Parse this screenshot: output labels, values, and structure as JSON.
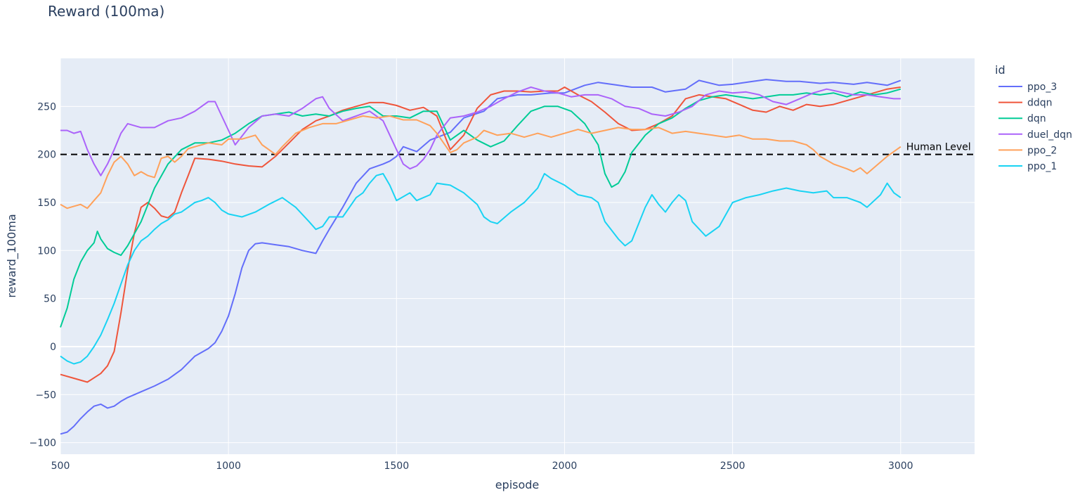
{
  "chart_data": {
    "type": "line",
    "title": "Reward (100ma)",
    "xlabel": "episode",
    "ylabel": "reward_100ma",
    "xlim": [
      500,
      3220
    ],
    "ylim": [
      -112,
      300
    ],
    "x_ticks": [
      500,
      1000,
      1500,
      2000,
      2500,
      3000
    ],
    "y_ticks": [
      -100,
      -50,
      0,
      50,
      100,
      150,
      200,
      250
    ],
    "grid": true,
    "legend": {
      "title": "id",
      "placement": "right"
    },
    "reference_line": {
      "y": 200,
      "label": "Human Level",
      "style": "dashed"
    },
    "series": [
      {
        "name": "ppo_3",
        "color": "#636efa",
        "x": [
          500,
          520,
          540,
          560,
          580,
          600,
          620,
          640,
          660,
          680,
          700,
          740,
          780,
          820,
          860,
          900,
          940,
          960,
          980,
          1000,
          1020,
          1040,
          1060,
          1080,
          1100,
          1140,
          1180,
          1220,
          1260,
          1280,
          1300,
          1340,
          1380,
          1420,
          1460,
          1480,
          1500,
          1520,
          1560,
          1600,
          1660,
          1700,
          1760,
          1800,
          1860,
          1900,
          1960,
          2000,
          2060,
          2100,
          2160,
          2200,
          2260,
          2300,
          2360,
          2400,
          2460,
          2500,
          2560,
          2600,
          2660,
          2700,
          2760,
          2800,
          2860,
          2900,
          2960,
          3000
        ],
        "values": [
          -91,
          -89,
          -83,
          -75,
          -68,
          -62,
          -60,
          -64,
          -62,
          -57,
          -53,
          -47,
          -41,
          -34,
          -24,
          -10,
          -2,
          4,
          16,
          32,
          55,
          82,
          100,
          107,
          108,
          106,
          104,
          100,
          97,
          110,
          122,
          145,
          170,
          185,
          190,
          193,
          198,
          208,
          203,
          215,
          223,
          238,
          245,
          258,
          262,
          262,
          264,
          264,
          272,
          275,
          272,
          270,
          270,
          265,
          268,
          277,
          272,
          273,
          276,
          278,
          276,
          276,
          274,
          275,
          273,
          275,
          272,
          277
        ]
      },
      {
        "name": "ddqn",
        "color": "#ef553b",
        "x": [
          500,
          540,
          580,
          620,
          640,
          660,
          680,
          700,
          720,
          740,
          760,
          780,
          800,
          820,
          840,
          860,
          880,
          900,
          940,
          980,
          1020,
          1060,
          1100,
          1140,
          1180,
          1220,
          1260,
          1300,
          1340,
          1380,
          1420,
          1460,
          1500,
          1540,
          1580,
          1620,
          1660,
          1700,
          1740,
          1780,
          1820,
          1860,
          1900,
          1940,
          1980,
          2000,
          2040,
          2080,
          2120,
          2160,
          2200,
          2240,
          2280,
          2320,
          2360,
          2400,
          2440,
          2480,
          2520,
          2560,
          2600,
          2640,
          2680,
          2720,
          2760,
          2800,
          2840,
          2880,
          2920,
          2960,
          3000
        ],
        "values": [
          -29,
          -33,
          -37,
          -28,
          -20,
          -5,
          35,
          80,
          118,
          145,
          150,
          144,
          136,
          134,
          140,
          160,
          178,
          196,
          195,
          193,
          190,
          188,
          187,
          198,
          212,
          226,
          235,
          240,
          246,
          250,
          254,
          254,
          251,
          246,
          249,
          240,
          205,
          220,
          248,
          262,
          266,
          266,
          265,
          266,
          266,
          270,
          262,
          255,
          244,
          232,
          225,
          226,
          232,
          240,
          258,
          262,
          260,
          258,
          252,
          246,
          244,
          250,
          246,
          252,
          250,
          252,
          256,
          260,
          264,
          268,
          270
        ]
      },
      {
        "name": "dqn",
        "color": "#00cc96",
        "x": [
          500,
          520,
          540,
          560,
          580,
          600,
          610,
          620,
          640,
          660,
          680,
          700,
          740,
          780,
          820,
          860,
          900,
          940,
          980,
          1020,
          1060,
          1100,
          1140,
          1180,
          1220,
          1260,
          1300,
          1340,
          1380,
          1420,
          1460,
          1500,
          1540,
          1580,
          1620,
          1660,
          1700,
          1740,
          1780,
          1820,
          1860,
          1900,
          1940,
          1980,
          2020,
          2060,
          2100,
          2120,
          2140,
          2160,
          2180,
          2200,
          2240,
          2280,
          2320,
          2360,
          2400,
          2440,
          2480,
          2520,
          2560,
          2600,
          2640,
          2680,
          2720,
          2760,
          2800,
          2840,
          2880,
          2920,
          2960,
          3000
        ],
        "values": [
          20,
          40,
          70,
          88,
          100,
          108,
          120,
          112,
          102,
          98,
          95,
          105,
          130,
          165,
          190,
          205,
          212,
          212,
          215,
          222,
          232,
          240,
          242,
          244,
          240,
          242,
          240,
          245,
          248,
          250,
          240,
          240,
          238,
          245,
          245,
          215,
          225,
          215,
          208,
          214,
          230,
          245,
          250,
          250,
          245,
          232,
          210,
          180,
          166,
          170,
          182,
          202,
          220,
          232,
          238,
          248,
          256,
          260,
          262,
          260,
          258,
          260,
          262,
          262,
          264,
          262,
          264,
          260,
          265,
          262,
          264,
          268
        ]
      },
      {
        "name": "duel_dqn",
        "color": "#ab63fa",
        "x": [
          500,
          520,
          540,
          560,
          580,
          600,
          620,
          640,
          660,
          680,
          700,
          740,
          780,
          820,
          860,
          900,
          940,
          960,
          980,
          1000,
          1020,
          1060,
          1100,
          1140,
          1180,
          1220,
          1260,
          1280,
          1300,
          1340,
          1380,
          1420,
          1460,
          1500,
          1520,
          1540,
          1560,
          1580,
          1600,
          1620,
          1660,
          1700,
          1740,
          1780,
          1820,
          1860,
          1900,
          1940,
          1980,
          2020,
          2060,
          2100,
          2140,
          2180,
          2220,
          2260,
          2300,
          2340,
          2380,
          2420,
          2460,
          2500,
          2540,
          2580,
          2620,
          2660,
          2700,
          2740,
          2780,
          2820,
          2860,
          2900,
          2940,
          2980,
          3000
        ],
        "values": [
          225,
          225,
          222,
          224,
          205,
          190,
          178,
          190,
          205,
          222,
          232,
          228,
          228,
          235,
          238,
          245,
          255,
          255,
          240,
          225,
          210,
          228,
          240,
          242,
          240,
          248,
          258,
          260,
          248,
          235,
          240,
          245,
          235,
          205,
          190,
          185,
          188,
          195,
          205,
          220,
          238,
          240,
          244,
          250,
          258,
          265,
          270,
          266,
          264,
          260,
          262,
          262,
          258,
          250,
          248,
          242,
          240,
          244,
          250,
          262,
          266,
          264,
          265,
          262,
          255,
          252,
          258,
          264,
          268,
          265,
          262,
          262,
          260,
          258,
          258
        ]
      },
      {
        "name": "ppo_2",
        "color": "#ffa15a",
        "x": [
          500,
          520,
          540,
          560,
          580,
          600,
          620,
          640,
          660,
          680,
          700,
          720,
          740,
          760,
          780,
          800,
          820,
          840,
          860,
          880,
          900,
          940,
          980,
          1000,
          1040,
          1080,
          1100,
          1120,
          1140,
          1160,
          1200,
          1240,
          1280,
          1320,
          1360,
          1400,
          1440,
          1480,
          1520,
          1560,
          1600,
          1620,
          1640,
          1660,
          1680,
          1700,
          1740,
          1760,
          1800,
          1840,
          1880,
          1920,
          1960,
          2000,
          2040,
          2080,
          2120,
          2160,
          2200,
          2240,
          2280,
          2320,
          2360,
          2400,
          2440,
          2480,
          2520,
          2560,
          2600,
          2640,
          2680,
          2720,
          2740,
          2760,
          2800,
          2840,
          2860,
          2880,
          2900,
          2920,
          2960,
          3000
        ],
        "values": [
          148,
          144,
          146,
          148,
          144,
          152,
          160,
          178,
          192,
          198,
          190,
          178,
          182,
          178,
          176,
          196,
          198,
          192,
          198,
          206,
          208,
          212,
          210,
          216,
          216,
          220,
          210,
          205,
          200,
          208,
          222,
          228,
          232,
          232,
          236,
          240,
          238,
          240,
          236,
          236,
          230,
          222,
          212,
          202,
          205,
          212,
          218,
          225,
          220,
          222,
          218,
          222,
          218,
          222,
          226,
          222,
          225,
          228,
          226,
          226,
          228,
          222,
          224,
          222,
          220,
          218,
          220,
          216,
          216,
          214,
          214,
          210,
          205,
          198,
          190,
          185,
          182,
          186,
          180,
          186,
          198,
          208
        ]
      },
      {
        "name": "ppo_1",
        "color": "#19d3f3",
        "x": [
          500,
          520,
          540,
          560,
          580,
          600,
          620,
          640,
          660,
          680,
          700,
          720,
          740,
          760,
          780,
          800,
          820,
          840,
          860,
          880,
          900,
          920,
          940,
          960,
          980,
          1000,
          1040,
          1080,
          1120,
          1160,
          1180,
          1200,
          1240,
          1260,
          1280,
          1300,
          1340,
          1380,
          1400,
          1420,
          1440,
          1460,
          1480,
          1500,
          1540,
          1560,
          1600,
          1620,
          1660,
          1700,
          1740,
          1760,
          1780,
          1800,
          1840,
          1880,
          1920,
          1940,
          1960,
          2000,
          2040,
          2080,
          2100,
          2120,
          2160,
          2180,
          2200,
          2240,
          2260,
          2280,
          2300,
          2320,
          2340,
          2360,
          2380,
          2420,
          2440,
          2460,
          2500,
          2540,
          2580,
          2620,
          2660,
          2700,
          2740,
          2780,
          2800,
          2840,
          2880,
          2900,
          2940,
          2960,
          2980,
          3000
        ],
        "values": [
          -10,
          -15,
          -18,
          -16,
          -10,
          0,
          12,
          28,
          45,
          65,
          85,
          100,
          110,
          115,
          122,
          128,
          132,
          138,
          140,
          145,
          150,
          152,
          155,
          150,
          142,
          138,
          135,
          140,
          148,
          155,
          150,
          145,
          130,
          122,
          125,
          135,
          135,
          155,
          160,
          170,
          178,
          180,
          168,
          152,
          160,
          152,
          158,
          170,
          168,
          160,
          148,
          135,
          130,
          128,
          140,
          150,
          165,
          180,
          175,
          168,
          158,
          155,
          150,
          130,
          112,
          105,
          110,
          145,
          158,
          148,
          140,
          150,
          158,
          152,
          130,
          115,
          120,
          125,
          150,
          155,
          158,
          162,
          165,
          162,
          160,
          162,
          155,
          155,
          150,
          145,
          158,
          170,
          160,
          155
        ]
      }
    ]
  }
}
